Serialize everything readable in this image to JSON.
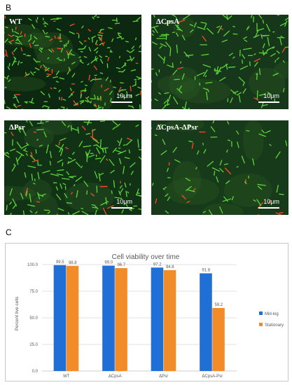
{
  "figure": {
    "panel_b_label": "B",
    "panel_c_label": "C",
    "micrographs": [
      {
        "label": "WT",
        "scale": "10μm",
        "seed": 11,
        "density": 300,
        "red_ratio": 0.22,
        "bg": "#0d2810"
      },
      {
        "label": "ΔCpsA",
        "scale": "10μm",
        "seed": 27,
        "density": 170,
        "red_ratio": 0.05,
        "bg": "#16371a"
      },
      {
        "label": "ΔPsr",
        "scale": "10μm",
        "seed": 43,
        "density": 200,
        "red_ratio": 0.12,
        "bg": "#123216"
      },
      {
        "label": "ΔCpsA-ΔPsr",
        "scale": "10μm",
        "seed": 59,
        "density": 80,
        "red_ratio": 0.1,
        "bg": "#173a1a"
      }
    ]
  },
  "colors": {
    "mid_log": "#1f6fd6",
    "stationary": "#f28c28",
    "grid": "#d9d9d9",
    "cell_green": "#5dd43a",
    "cell_red": "#ff4a2a"
  },
  "chart_data": {
    "type": "bar",
    "title": "Cell viability over time",
    "ylabel": "Percent live cells",
    "categories": [
      "WT",
      "ΔCpsA",
      "ΔPsr",
      "ΔCpsA-Psr"
    ],
    "series": [
      {
        "name": "Mid-log",
        "values": [
          99.5,
          99.0,
          97.2,
          91.8
        ],
        "labels": [
          "99.5",
          "99.0",
          "97.2",
          "91.8"
        ]
      },
      {
        "name": "Stationary",
        "values": [
          98.8,
          96.7,
          94.8,
          59.2
        ],
        "labels": [
          "98.8",
          "96.7",
          "94.8",
          "59.2"
        ]
      }
    ],
    "ylim": [
      0,
      100
    ],
    "yticks": [
      0,
      25,
      50,
      75,
      100
    ],
    "ytick_labels": [
      "0.0",
      "25.0",
      "50.0",
      "75.0",
      "100.0"
    ],
    "grid": true,
    "legend_position": "right"
  }
}
